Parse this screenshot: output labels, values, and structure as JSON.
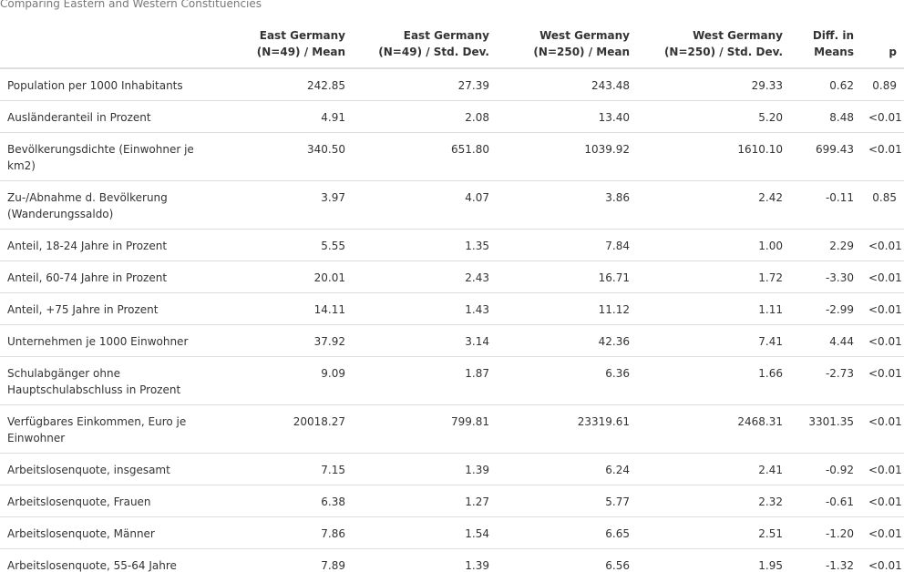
{
  "caption": "Comparing Eastern and Western Constituencies",
  "table": {
    "headers": [
      "",
      "East Germany (N=49) / Mean",
      "East Germany (N=49) / Std. Dev.",
      "West Germany (N=250) / Mean",
      "West Germany (N=250) / Std. Dev.",
      "Diff. in Means",
      "p"
    ],
    "rows": [
      [
        "Population per 1000 Inhabitants",
        "242.85",
        "27.39",
        "243.48",
        "29.33",
        "0.62",
        "0.89"
      ],
      [
        "Ausländeranteil in Prozent",
        "4.91",
        "2.08",
        "13.40",
        "5.20",
        "8.48",
        "<0.01"
      ],
      [
        "Bevölkerungsdichte (Einwohner je km2)",
        "340.50",
        "651.80",
        "1039.92",
        "1610.10",
        "699.43",
        "<0.01"
      ],
      [
        "Zu-/Abnahme d. Bevölkerung (Wanderungssaldo)",
        "3.97",
        "4.07",
        "3.86",
        "2.42",
        "-0.11",
        "0.85"
      ],
      [
        "Anteil, 18-24 Jahre in Prozent",
        "5.55",
        "1.35",
        "7.84",
        "1.00",
        "2.29",
        "<0.01"
      ],
      [
        "Anteil, 60-74 Jahre in Prozent",
        "20.01",
        "2.43",
        "16.71",
        "1.72",
        "-3.30",
        "<0.01"
      ],
      [
        "Anteil, +75 Jahre in Prozent",
        "14.11",
        "1.43",
        "11.12",
        "1.11",
        "-2.99",
        "<0.01"
      ],
      [
        "Unternehmen je 1000 Einwohner",
        "37.92",
        "3.14",
        "42.36",
        "7.41",
        "4.44",
        "<0.01"
      ],
      [
        "Schulabgänger ohne Hauptschulabschluss in Prozent",
        "9.09",
        "1.87",
        "6.36",
        "1.66",
        "-2.73",
        "<0.01"
      ],
      [
        "Verfügbares Einkommen, Euro je Einwohner",
        "20018.27",
        "799.81",
        "23319.61",
        "2468.31",
        "3301.35",
        "<0.01"
      ],
      [
        "Arbeitslosenquote, insgesamt",
        "7.15",
        "1.39",
        "6.24",
        "2.41",
        "-0.92",
        "<0.01"
      ],
      [
        "Arbeitslosenquote, Frauen",
        "6.38",
        "1.27",
        "5.77",
        "2.32",
        "-0.61",
        "<0.01"
      ],
      [
        "Arbeitslosenquote, Männer",
        "7.86",
        "1.54",
        "6.65",
        "2.51",
        "-1.20",
        "<0.01"
      ],
      [
        "Arbeitslosenquote, 55-64 Jahre",
        "7.89",
        "1.39",
        "6.56",
        "1.95",
        "-1.32",
        "<0.01"
      ]
    ]
  }
}
